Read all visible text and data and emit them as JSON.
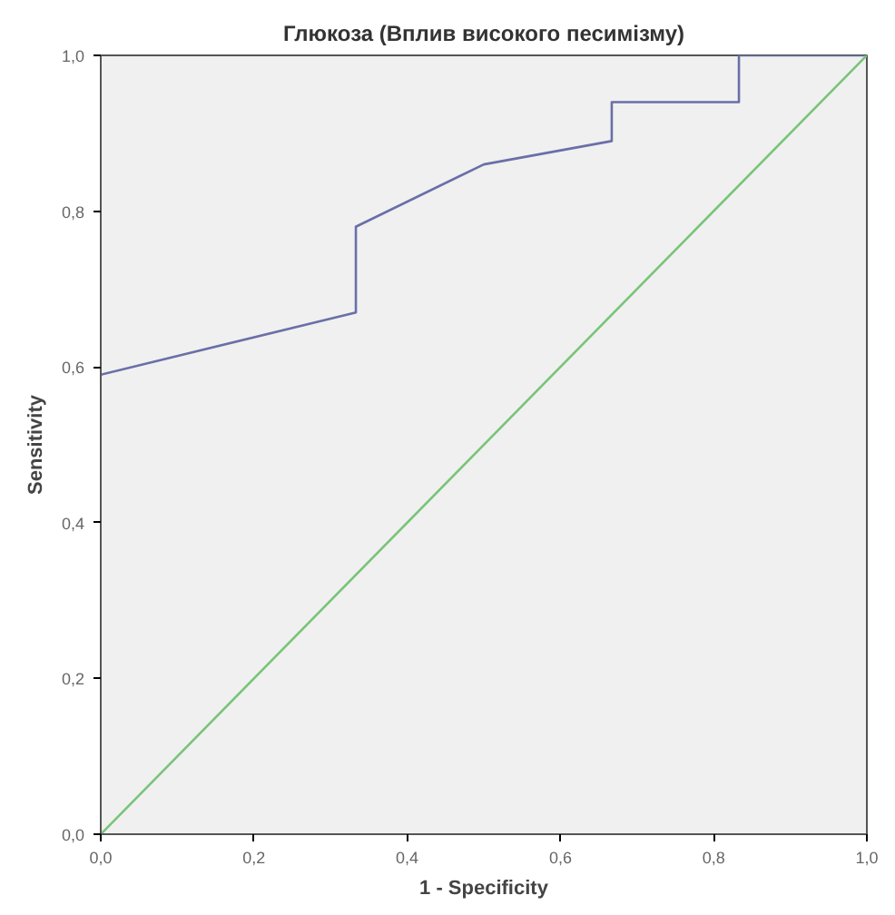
{
  "chart_data": {
    "type": "line",
    "title": "Глюкоза (Вплив високого песимізму)",
    "xlabel": "1 - Specificity",
    "ylabel": "Sensitivity",
    "xlim": [
      0,
      1
    ],
    "ylim": [
      0,
      1
    ],
    "xticks": [
      {
        "value": 0,
        "label": "0,0"
      },
      {
        "value": 0.2,
        "label": "0,2"
      },
      {
        "value": 0.4,
        "label": "0,4"
      },
      {
        "value": 0.6,
        "label": "0,6"
      },
      {
        "value": 0.8,
        "label": "0,8"
      },
      {
        "value": 1,
        "label": "1,0"
      }
    ],
    "yticks": [
      {
        "value": 0,
        "label": "0,0"
      },
      {
        "value": 0.2,
        "label": "0,2"
      },
      {
        "value": 0.4,
        "label": "0,4"
      },
      {
        "value": 0.6,
        "label": "0,6"
      },
      {
        "value": 0.8,
        "label": "0,8"
      },
      {
        "value": 1,
        "label": "1,0"
      }
    ],
    "series": [
      {
        "color": "#6a6fa8",
        "x": [
          0,
          0.333,
          0.333,
          0.5,
          0.667,
          0.667,
          0.833,
          0.833,
          1
        ],
        "values": [
          0.59,
          0.67,
          0.78,
          0.86,
          0.89,
          0.94,
          0.94,
          1,
          1
        ]
      },
      {
        "color": "#78c478",
        "x": [
          0,
          1
        ],
        "values": [
          0,
          1
        ]
      }
    ]
  }
}
